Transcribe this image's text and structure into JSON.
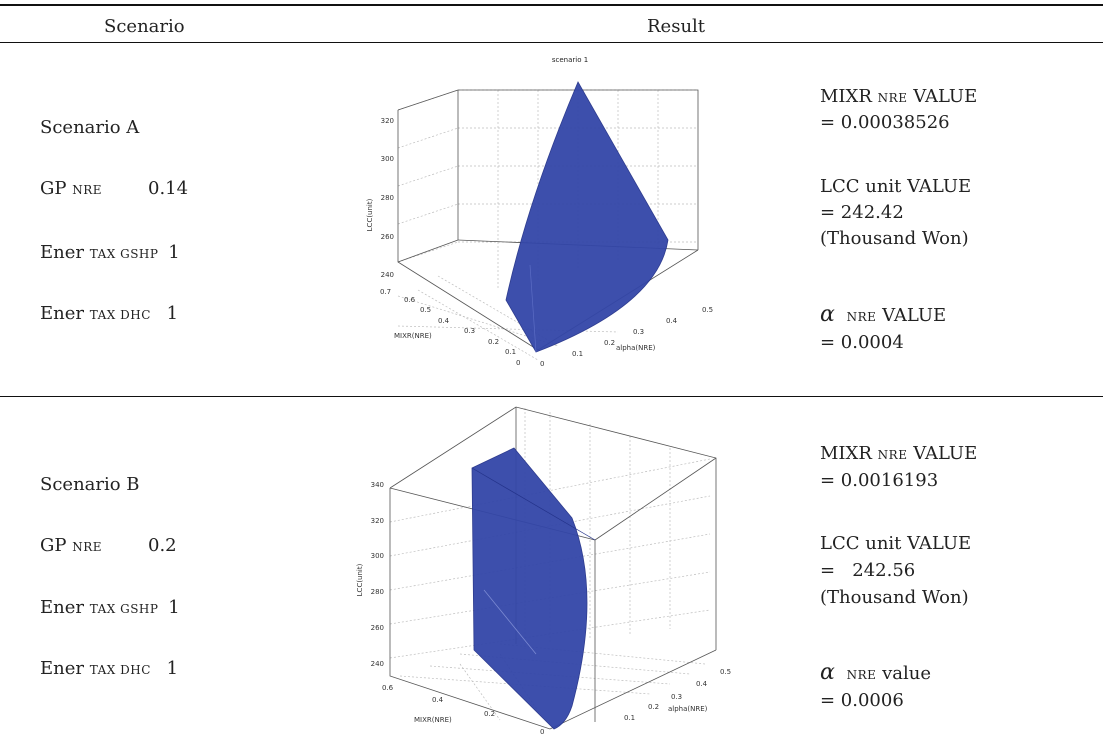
{
  "header": {
    "scenario": "Scenario",
    "result": "Result"
  },
  "rows": [
    {
      "scenario": {
        "name": "Scenario A",
        "gp_label": "GP",
        "gp_sub": "NRE",
        "gp_value": "0.14",
        "gshp_label": "Ener",
        "gshp_sub": "TAX GSHP",
        "gshp_value": "1",
        "dhc_label": "Ener",
        "dhc_sub": "TAX DHC",
        "dhc_value": "1"
      },
      "plot": {
        "title": "scenario 1",
        "zlabel": "LCC(unit)",
        "xlabel": "MIXR(NRE)",
        "ylabel": "alpha(NRE)",
        "zticks": [
          "240",
          "260",
          "280",
          "300",
          "320"
        ],
        "xticks": [
          "0",
          "0.1",
          "0.2",
          "0.3",
          "0.4",
          "0.5",
          "0.6",
          "0.7"
        ],
        "yticks": [
          "0",
          "0.1",
          "0.2",
          "0.3",
          "0.4",
          "0.5"
        ]
      },
      "result": {
        "mixr_label": "MIXR",
        "mixr_sub": "NRE",
        "mixr_suffix": "VALUE",
        "mixr_value": "= 0.00038526",
        "lcc_label": "LCC unit VALUE",
        "lcc_value": "= 242.42",
        "lcc_unit": "(Thousand Won)",
        "alpha_symbol": "α",
        "alpha_sub": "NRE",
        "alpha_suffix": "VALUE",
        "alpha_value": "= 0.0004"
      }
    },
    {
      "scenario": {
        "name": "Scenario B",
        "gp_label": "GP",
        "gp_sub": "NRE",
        "gp_value": "0.2",
        "gshp_label": "Ener",
        "gshp_sub": "TAX GSHP",
        "gshp_value": "1",
        "dhc_label": "Ener",
        "dhc_sub": "TAX DHC",
        "dhc_value": "1"
      },
      "plot": {
        "title": "",
        "zlabel": "LCC(unit)",
        "xlabel": "MIXR(NRE)",
        "ylabel": "alpha(NRE)",
        "zticks": [
          "240",
          "260",
          "280",
          "300",
          "320",
          "340"
        ],
        "xticks": [
          "0",
          "0.2",
          "0.4",
          "0.6"
        ],
        "yticks": [
          "0.1",
          "0.2",
          "0.3",
          "0.4",
          "0.5"
        ]
      },
      "result": {
        "mixr_label": "MIXR",
        "mixr_sub": "NRE",
        "mixr_suffix": "VALUE",
        "mixr_value": "= 0.0016193",
        "lcc_label": "LCC unit VALUE",
        "lcc_value": "=   242.56",
        "lcc_unit": "(Thousand Won)",
        "alpha_symbol": "α",
        "alpha_sub": "NRE",
        "alpha_suffix": "value",
        "alpha_value": "= 0.0006"
      }
    }
  ],
  "colors": {
    "surface": "#3346a8",
    "surface_edge": "#24338a",
    "grid": "#bdbdbd",
    "axis": "#555555"
  }
}
